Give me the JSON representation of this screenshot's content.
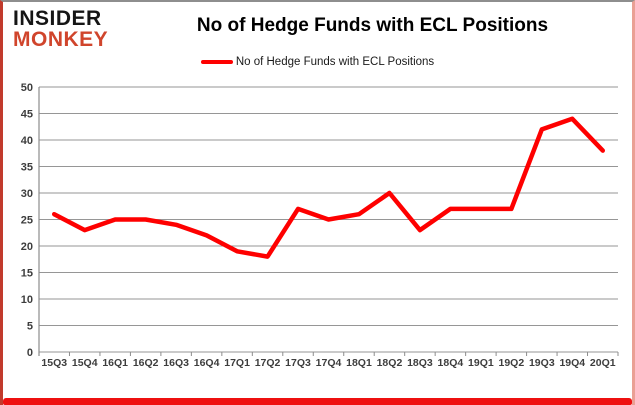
{
  "branding": {
    "line1": "INSIDER",
    "line2": "MONKEY",
    "brand_color": "#d0452c"
  },
  "header": {
    "title": "No of Hedge Funds with ECL Positions"
  },
  "legend": {
    "label": "No of Hedge Funds with ECL Positions",
    "swatch_color": "#fe0000"
  },
  "chart_data": {
    "type": "line",
    "title": "No of Hedge Funds with ECL Positions",
    "categories": [
      "15Q3",
      "15Q4",
      "16Q1",
      "16Q2",
      "16Q3",
      "16Q4",
      "17Q1",
      "17Q2",
      "17Q3",
      "17Q4",
      "18Q1",
      "18Q2",
      "18Q3",
      "18Q4",
      "19Q1",
      "19Q2",
      "19Q3",
      "19Q4",
      "20Q1"
    ],
    "series": [
      {
        "name": "No of Hedge Funds with ECL Positions",
        "color": "#fe0000",
        "values": [
          26,
          23,
          25,
          25,
          24,
          22,
          19,
          18,
          27,
          25,
          26,
          30,
          23,
          27,
          27,
          27,
          42,
          44,
          38
        ]
      }
    ],
    "xlabel": "",
    "ylabel": "",
    "ylim": [
      0,
      50
    ],
    "ytick_step": 5,
    "grid": true,
    "legend_position": "top-center",
    "gridline_color": "#969696",
    "axis_color": "#8c8c8c",
    "axis_text_color": "#3d3d3d",
    "line_width": 4.5
  },
  "frame": {
    "bottom_bar_color": "#ee1010"
  }
}
